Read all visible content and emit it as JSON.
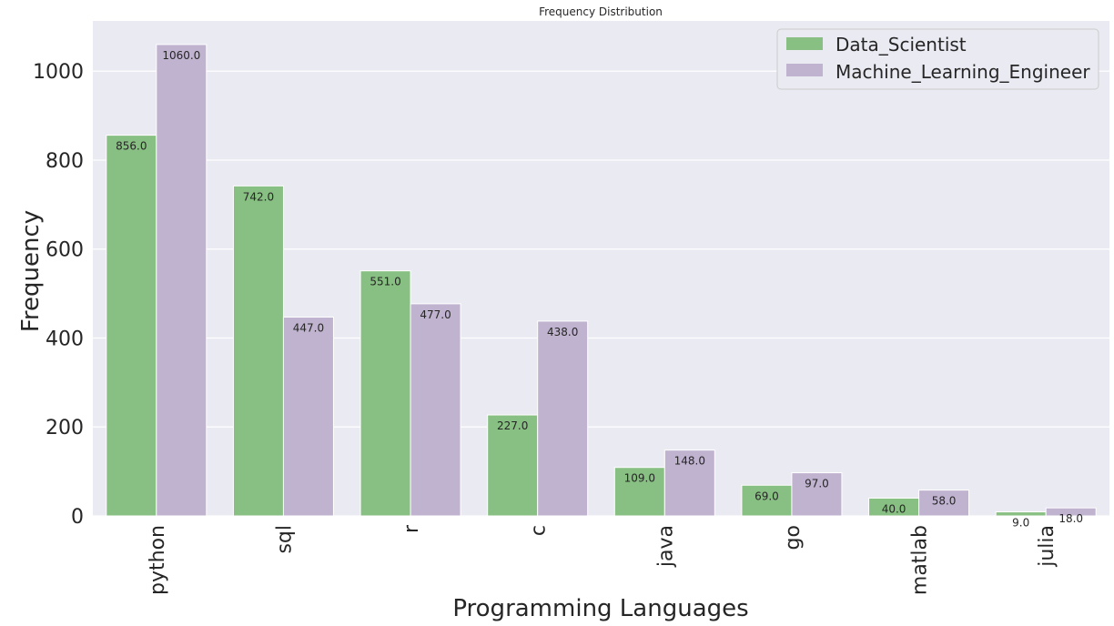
{
  "chart_data": {
    "type": "bar",
    "title": "Frequency Distribution",
    "xlabel": "Programming Languages",
    "ylabel": "Frequency",
    "categories": [
      "python",
      "sql",
      "r",
      "c",
      "java",
      "go",
      "matlab",
      "julia"
    ],
    "series": [
      {
        "name": "Data_Scientist",
        "color": "#88bf82",
        "values": [
          856,
          742,
          551,
          227,
          109,
          69,
          40,
          9
        ],
        "labels": [
          "856.0",
          "742.0",
          "551.0",
          "227.0",
          "109.0",
          "69.0",
          "40.0",
          "9.0"
        ]
      },
      {
        "name": "Machine_Learning_Engineer",
        "color": "#c0b3d0",
        "values": [
          1060,
          447,
          477,
          438,
          148,
          97,
          58,
          18
        ],
        "labels": [
          "1060.0",
          "447.0",
          "477.0",
          "438.0",
          "148.0",
          "97.0",
          "58.0",
          "18.0"
        ]
      }
    ],
    "ylim": [
      0,
      1113
    ],
    "yticks": [
      0,
      200,
      400,
      600,
      800,
      1000
    ],
    "grid": true,
    "legend_position": "top-right",
    "background_color": "#eaeaf2"
  }
}
